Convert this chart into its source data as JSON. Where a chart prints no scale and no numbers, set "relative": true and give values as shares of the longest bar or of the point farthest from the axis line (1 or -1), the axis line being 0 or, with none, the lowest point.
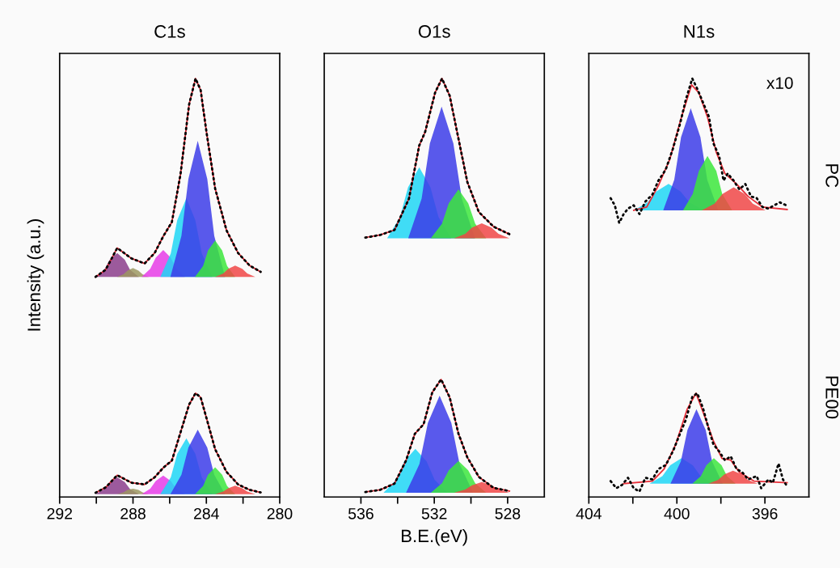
{
  "chart_data": [
    {
      "type": "area",
      "title": "C1s",
      "ylabel": "Intensity (a.u.)",
      "relative": true,
      "xlim": [
        292,
        280
      ],
      "xticks": [
        292,
        {
          "value": 290,
          "label": null
        },
        288,
        {
          "value": 286,
          "label": null
        },
        284,
        {
          "value": 282,
          "label": null
        },
        280
      ],
      "tick_labels": "x",
      "grid": false,
      "series": [
        {
          "type": "area",
          "color": "#8b3d8b",
          "x": [
            290.04,
            289.57,
            289.27,
            288.86,
            288.45,
            288.16,
            287.68
          ],
          "values": [
            0.526,
            0.543,
            0.567,
            0.583,
            0.567,
            0.543,
            0.526
          ]
        },
        {
          "type": "area",
          "color": "#9c9860",
          "x": [
            288.86,
            288.52,
            288.3,
            288.0,
            287.7,
            287.48,
            287.14
          ],
          "values": [
            0.526,
            0.532,
            0.541,
            0.547,
            0.541,
            0.532,
            0.526
          ]
        },
        {
          "type": "area",
          "color": "#e63ce6",
          "x": [
            287.53,
            287.06,
            286.76,
            286.35,
            285.94,
            285.64,
            285.17
          ],
          "values": [
            0.526,
            0.545,
            0.572,
            0.59,
            0.572,
            0.545,
            0.526
          ]
        },
        {
          "type": "area",
          "color": "#1ed6f5",
          "x": [
            286.51,
            285.94,
            285.59,
            285.09,
            284.6,
            284.25,
            283.68
          ],
          "values": [
            0.526,
            0.582,
            0.661,
            0.714,
            0.661,
            0.582,
            0.526
          ]
        },
        {
          "type": "area",
          "color": "#3c3ce8",
          "x": [
            285.96,
            285.36,
            284.98,
            284.47,
            283.95,
            283.57,
            282.98
          ],
          "values": [
            0.526,
            0.624,
            0.76,
            0.851,
            0.76,
            0.624,
            0.526
          ]
        },
        {
          "type": "area",
          "color": "#3ce63c",
          "x": [
            284.62,
            284.18,
            283.91,
            283.52,
            283.14,
            282.87,
            282.43
          ],
          "values": [
            0.526,
            0.552,
            0.589,
            0.613,
            0.589,
            0.552,
            0.526
          ]
        },
        {
          "type": "area",
          "color": "#f04646",
          "x": [
            283.52,
            283.08,
            282.81,
            282.43,
            282.04,
            281.77,
            281.33
          ],
          "values": [
            0.526,
            0.534,
            0.545,
            0.553,
            0.545,
            0.534,
            0.526
          ]
        },
        {
          "type": "line",
          "color": "#e8303a",
          "line_style": "solid",
          "x": [
            290.04,
            289.49,
            288.86,
            288.08,
            287.37,
            286.82,
            286.35,
            285.88,
            285.41,
            284.94,
            284.59,
            284.31,
            283.99,
            283.52,
            282.9,
            282.27,
            281.64,
            281.04
          ],
          "values": [
            0.526,
            0.543,
            0.595,
            0.57,
            0.558,
            0.583,
            0.623,
            0.657,
            0.771,
            0.938,
            1.0,
            0.972,
            0.871,
            0.737,
            0.637,
            0.583,
            0.553,
            0.538
          ]
        },
        {
          "type": "line",
          "color": "#000000",
          "line_style": "dotted",
          "x": [
            290.04,
            289.49,
            288.86,
            288.08,
            287.37,
            286.82,
            286.35,
            285.88,
            285.41,
            284.94,
            284.59,
            284.31,
            283.99,
            283.52,
            282.9,
            282.27,
            281.64,
            281.04
          ],
          "values": [
            0.526,
            0.543,
            0.595,
            0.57,
            0.558,
            0.583,
            0.623,
            0.657,
            0.771,
            0.938,
            1.0,
            0.972,
            0.871,
            0.737,
            0.637,
            0.583,
            0.553,
            0.538
          ]
        },
        {
          "type": "area",
          "color": "#8b3d8c",
          "x": [
            290.04,
            289.57,
            289.27,
            288.86,
            288.45,
            288.16,
            287.68
          ],
          "values": [
            0.007,
            0.019,
            0.036,
            0.047,
            0.036,
            0.019,
            0.007
          ]
        },
        {
          "type": "area",
          "color": "#9c9861",
          "x": [
            288.86,
            288.52,
            288.3,
            288.0,
            287.7,
            287.48,
            287.14
          ],
          "values": [
            0.007,
            0.011,
            0.017,
            0.02,
            0.017,
            0.011,
            0.007
          ]
        },
        {
          "type": "area",
          "color": "#e63ce7",
          "x": [
            287.53,
            287.06,
            286.76,
            286.35,
            285.94,
            285.64,
            285.17
          ],
          "values": [
            0.007,
            0.02,
            0.038,
            0.051,
            0.038,
            0.02,
            0.007
          ]
        },
        {
          "type": "area",
          "color": "#1ed6f6",
          "x": [
            286.51,
            285.94,
            285.59,
            285.09,
            284.6,
            284.25,
            283.68
          ],
          "values": [
            0.007,
            0.047,
            0.103,
            0.14,
            0.103,
            0.047,
            0.007
          ]
        },
        {
          "type": "area",
          "color": "#3c3ce9",
          "x": [
            285.96,
            285.36,
            284.98,
            284.47,
            283.95,
            283.57,
            282.98
          ],
          "values": [
            0.007,
            0.053,
            0.118,
            0.161,
            0.118,
            0.053,
            0.007
          ]
        },
        {
          "type": "area",
          "color": "#3ce63d",
          "x": [
            284.62,
            284.18,
            283.91,
            283.52,
            283.14,
            282.87,
            282.43
          ],
          "values": [
            0.007,
            0.026,
            0.053,
            0.071,
            0.053,
            0.026,
            0.007
          ]
        },
        {
          "type": "area",
          "color": "#f04647",
          "x": [
            283.52,
            283.08,
            282.81,
            282.43,
            282.04,
            281.77,
            281.33
          ],
          "values": [
            0.007,
            0.013,
            0.021,
            0.027,
            0.021,
            0.013,
            0.007
          ]
        },
        {
          "type": "line",
          "color": "#e8303a",
          "line_style": "solid",
          "x": [
            290.04,
            289.49,
            288.86,
            288.08,
            287.37,
            286.82,
            286.35,
            285.88,
            285.41,
            284.94,
            284.59,
            284.31,
            283.99,
            283.52,
            282.9,
            282.27,
            281.64,
            281.04
          ],
          "values": [
            0.01,
            0.023,
            0.052,
            0.034,
            0.03,
            0.047,
            0.07,
            0.087,
            0.154,
            0.221,
            0.248,
            0.238,
            0.188,
            0.114,
            0.06,
            0.03,
            0.017,
            0.011
          ]
        },
        {
          "type": "line",
          "color": "#000000",
          "line_style": "dotted",
          "x": [
            290.04,
            289.49,
            288.86,
            288.08,
            287.37,
            286.82,
            286.35,
            285.88,
            285.41,
            284.94,
            284.59,
            284.31,
            283.99,
            283.52,
            282.9,
            282.27,
            281.64,
            281.04
          ],
          "values": [
            0.01,
            0.023,
            0.052,
            0.034,
            0.03,
            0.047,
            0.07,
            0.087,
            0.154,
            0.221,
            0.248,
            0.238,
            0.188,
            0.114,
            0.06,
            0.03,
            0.017,
            0.011
          ]
        }
      ]
    },
    {
      "type": "area",
      "title": "O1s",
      "xlabel": "B.E.(eV)",
      "relative": true,
      "xlim": [
        538,
        526
      ],
      "xticks": [
        536,
        {
          "value": 534,
          "label": null
        },
        532,
        {
          "value": 530,
          "label": null
        },
        528
      ],
      "tick_labels": "x",
      "grid": false,
      "series": [
        {
          "type": "area",
          "color": "#1ed6f5",
          "x": [
            534.57,
            533.87,
            533.43,
            532.82,
            532.21,
            531.77,
            531.08
          ],
          "values": [
            0.618,
            0.669,
            0.74,
            0.788,
            0.74,
            0.669,
            0.618
          ]
        },
        {
          "type": "area",
          "color": "#3c3ce8",
          "x": [
            533.42,
            532.69,
            532.24,
            531.6,
            530.96,
            530.5,
            529.78
          ],
          "values": [
            0.618,
            0.713,
            0.845,
            0.933,
            0.845,
            0.713,
            0.618
          ]
        },
        {
          "type": "area",
          "color": "#3ce63c",
          "x": [
            532.19,
            531.58,
            531.21,
            530.68,
            530.15,
            529.77,
            529.17
          ],
          "values": [
            0.618,
            0.653,
            0.702,
            0.735,
            0.702,
            0.653,
            0.618
          ]
        },
        {
          "type": "area",
          "color": "#f04646",
          "x": [
            530.92,
            530.31,
            529.94,
            529.41,
            528.88,
            528.5,
            527.9
          ],
          "values": [
            0.618,
            0.629,
            0.644,
            0.654,
            0.644,
            0.629,
            0.618
          ]
        },
        {
          "type": "line",
          "color": "#e8303a",
          "line_style": "solid",
          "x": [
            535.76,
            534.96,
            534.17,
            533.38,
            532.82,
            532.5,
            531.95,
            531.58,
            531.16,
            530.68,
            530.2,
            529.57,
            528.77,
            527.9
          ],
          "values": [
            0.62,
            0.626,
            0.638,
            0.713,
            0.84,
            0.872,
            0.967,
            1.0,
            0.959,
            0.856,
            0.753,
            0.681,
            0.646,
            0.628
          ]
        },
        {
          "type": "line",
          "color": "#000000",
          "line_style": "dotted",
          "x": [
            535.76,
            534.96,
            534.17,
            533.38,
            532.82,
            532.5,
            531.95,
            531.58,
            531.16,
            530.68,
            530.2,
            529.57,
            528.77,
            527.9
          ],
          "values": [
            0.62,
            0.626,
            0.638,
            0.713,
            0.84,
            0.872,
            0.967,
            1.0,
            0.959,
            0.856,
            0.753,
            0.681,
            0.646,
            0.628
          ]
        },
        {
          "type": "area",
          "color": "#1ed6f6",
          "x": [
            534.77,
            534.08,
            533.64,
            533.03,
            532.42,
            531.98,
            531.28
          ],
          "values": [
            0.01,
            0.041,
            0.085,
            0.115,
            0.085,
            0.041,
            0.01
          ]
        },
        {
          "type": "area",
          "color": "#3c3ce9",
          "x": [
            533.54,
            532.81,
            532.35,
            531.71,
            531.07,
            530.62,
            529.88
          ],
          "values": [
            0.01,
            0.079,
            0.177,
            0.242,
            0.177,
            0.079,
            0.01
          ]
        },
        {
          "type": "area",
          "color": "#3ce63d",
          "x": [
            532.19,
            531.58,
            531.21,
            530.68,
            530.15,
            529.77,
            529.17
          ],
          "values": [
            0.01,
            0.033,
            0.064,
            0.086,
            0.064,
            0.033,
            0.01
          ]
        },
        {
          "type": "area",
          "color": "#f04647",
          "x": [
            530.92,
            530.31,
            529.94,
            529.41,
            528.88,
            528.5,
            527.9
          ],
          "values": [
            0.01,
            0.018,
            0.028,
            0.036,
            0.028,
            0.018,
            0.01
          ]
        },
        {
          "type": "line",
          "color": "#e8303a",
          "line_style": "solid",
          "x": [
            535.76,
            534.96,
            534.17,
            533.54,
            533.06,
            532.58,
            532.11,
            531.63,
            531.16,
            530.68,
            530.2,
            529.57,
            528.77,
            527.9
          ],
          "values": [
            0.012,
            0.017,
            0.032,
            0.087,
            0.151,
            0.174,
            0.25,
            0.281,
            0.238,
            0.151,
            0.095,
            0.048,
            0.022,
            0.014
          ]
        },
        {
          "type": "line",
          "color": "#000000",
          "line_style": "dotted",
          "x": [
            535.76,
            534.96,
            534.17,
            533.54,
            533.06,
            532.58,
            532.11,
            531.63,
            531.16,
            530.68,
            530.2,
            529.57,
            528.77,
            527.9
          ],
          "values": [
            0.012,
            0.017,
            0.032,
            0.087,
            0.151,
            0.174,
            0.25,
            0.281,
            0.238,
            0.151,
            0.095,
            0.048,
            0.022,
            0.014
          ]
        }
      ]
    },
    {
      "type": "area",
      "title": "N1s",
      "relative": true,
      "xlim": [
        404,
        394
      ],
      "xticks": [
        404,
        {
          "value": 402,
          "label": null
        },
        400,
        {
          "value": 398,
          "label": null
        },
        396
      ],
      "tick_labels": "x",
      "grid": false,
      "annotations": [
        "x10",
        "PC",
        "PE00"
      ],
      "series": [
        {
          "type": "area",
          "color": "#1ed6f5",
          "x": [
            401.96,
            401.33,
            400.94,
            400.38,
            399.83,
            399.43,
            398.8
          ],
          "values": [
            0.685,
            0.704,
            0.73,
            0.748,
            0.73,
            0.704,
            0.685
          ]
        },
        {
          "type": "area",
          "color": "#3c3ce8",
          "x": [
            400.62,
            400.12,
            399.81,
            399.37,
            398.93,
            398.62,
            398.12
          ],
          "values": [
            0.685,
            0.758,
            0.86,
            0.929,
            0.86,
            0.758,
            0.685
          ]
        },
        {
          "type": "area",
          "color": "#3ce63c",
          "x": [
            399.72,
            399.28,
            399.0,
            398.61,
            398.21,
            397.94,
            397.49
          ],
          "values": [
            0.685,
            0.724,
            0.779,
            0.815,
            0.779,
            0.724,
            0.685
          ]
        },
        {
          "type": "area",
          "color": "#f04646",
          "x": [
            398.87,
            398.29,
            397.93,
            397.42,
            396.92,
            396.55,
            395.97
          ],
          "values": [
            0.685,
            0.701,
            0.724,
            0.74,
            0.724,
            0.701,
            0.685
          ]
        },
        {
          "type": "line",
          "color": "#e8303a",
          "line_style": "solid",
          "x": [
            401.96,
            401.37,
            400.84,
            400.32,
            399.79,
            399.33,
            399.0,
            398.61,
            398.21,
            397.82,
            397.29,
            396.76,
            396.11,
            394.99
          ],
          "values": [
            0.685,
            0.693,
            0.744,
            0.807,
            0.908,
            0.985,
            0.966,
            0.908,
            0.824,
            0.773,
            0.748,
            0.718,
            0.693,
            0.687
          ]
        },
        {
          "type": "line",
          "color": "#000000",
          "line_style": "dotted",
          "x": [
            403.01,
            402.82,
            402.62,
            402.42,
            402.22,
            401.96,
            401.7,
            401.43,
            401.11,
            400.84,
            400.51,
            400.18,
            399.86,
            399.59,
            399.3,
            399.07,
            398.8,
            398.54,
            398.34,
            398.08,
            397.88,
            397.69,
            397.42,
            397.16,
            396.89,
            396.63,
            396.37,
            396.11,
            395.84,
            395.58,
            395.32,
            394.99
          ],
          "values": [
            0.714,
            0.697,
            0.655,
            0.676,
            0.689,
            0.697,
            0.676,
            0.706,
            0.723,
            0.756,
            0.782,
            0.832,
            0.891,
            0.95,
            1.0,
            0.975,
            0.941,
            0.908,
            0.845,
            0.815,
            0.756,
            0.773,
            0.756,
            0.735,
            0.748,
            0.718,
            0.714,
            0.693,
            0.689,
            0.697,
            0.704,
            0.696
          ]
        },
        {
          "type": "area",
          "color": "#1ed6f6",
          "x": [
            401.24,
            400.66,
            400.3,
            399.79,
            399.28,
            398.92,
            398.34
          ],
          "values": [
            0.032,
            0.05,
            0.076,
            0.093,
            0.076,
            0.05,
            0.032
          ]
        },
        {
          "type": "area",
          "color": "#3c3ce9",
          "x": [
            400.29,
            399.82,
            399.52,
            399.11,
            398.69,
            398.4,
            397.92
          ],
          "values": [
            0.032,
            0.085,
            0.16,
            0.21,
            0.16,
            0.085,
            0.032
          ]
        },
        {
          "type": "area",
          "color": "#3ce63d",
          "x": [
            399.3,
            398.91,
            398.66,
            398.32,
            397.97,
            397.72,
            397.33
          ],
          "values": [
            0.032,
            0.05,
            0.076,
            0.093,
            0.076,
            0.05,
            0.032
          ]
        },
        {
          "type": "area",
          "color": "#f04647",
          "x": [
            398.57,
            398.12,
            397.84,
            397.45,
            397.05,
            396.78,
            396.33
          ],
          "values": [
            0.032,
            0.041,
            0.054,
            0.063,
            0.054,
            0.041,
            0.032
          ]
        },
        {
          "type": "line",
          "color": "#e8303a",
          "line_style": "solid",
          "x": [
            402.42,
            401.11,
            400.58,
            400.05,
            399.53,
            399.13,
            398.74,
            398.34,
            397.95,
            397.55,
            397.16,
            396.5,
            394.99
          ],
          "values": [
            0.032,
            0.038,
            0.067,
            0.126,
            0.21,
            0.248,
            0.193,
            0.134,
            0.092,
            0.088,
            0.059,
            0.038,
            0.034
          ]
        },
        {
          "type": "line",
          "color": "#000000",
          "line_style": "dotted",
          "x": [
            403.01,
            402.75,
            402.49,
            402.22,
            401.96,
            401.7,
            401.43,
            401.11,
            400.84,
            400.51,
            400.18,
            399.86,
            399.59,
            399.3,
            399.07,
            398.8,
            398.54,
            398.34,
            398.08,
            397.82,
            397.55,
            397.29,
            397.03,
            396.76,
            396.37,
            396.17,
            395.84,
            395.64,
            395.38,
            395.18,
            394.99
          ],
          "values": [
            0.038,
            0.021,
            0.029,
            0.046,
            0.021,
            0.013,
            0.046,
            0.042,
            0.067,
            0.076,
            0.109,
            0.151,
            0.185,
            0.239,
            0.248,
            0.21,
            0.16,
            0.126,
            0.109,
            0.088,
            0.097,
            0.067,
            0.059,
            0.042,
            0.05,
            0.021,
            0.042,
            0.034,
            0.08,
            0.042,
            0.025
          ]
        }
      ]
    }
  ]
}
